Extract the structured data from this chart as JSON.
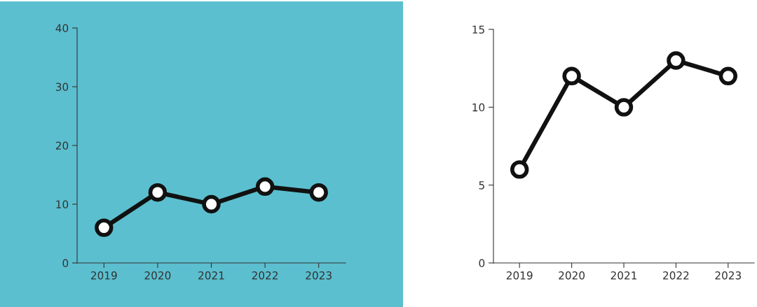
{
  "chart_data": [
    {
      "type": "line",
      "categories": [
        "2019",
        "2020",
        "2021",
        "2022",
        "2023"
      ],
      "series": [
        {
          "color": "#111111",
          "values": [
            6,
            12,
            10,
            13,
            12
          ]
        }
      ],
      "ylim": [
        0,
        40
      ],
      "yticks": [
        0,
        10,
        20,
        30,
        40
      ],
      "marker": "circle",
      "grid": false,
      "legend": false
    },
    {
      "type": "line",
      "categories": [
        "2019",
        "2020",
        "2021",
        "2022",
        "2023"
      ],
      "series": [
        {
          "color": "#111111",
          "values": [
            6,
            12,
            10,
            13,
            12
          ]
        }
      ],
      "ylim": [
        0,
        15
      ],
      "yticks": [
        0,
        5,
        10,
        15
      ],
      "marker": "circle",
      "grid": false,
      "legend": false
    }
  ]
}
